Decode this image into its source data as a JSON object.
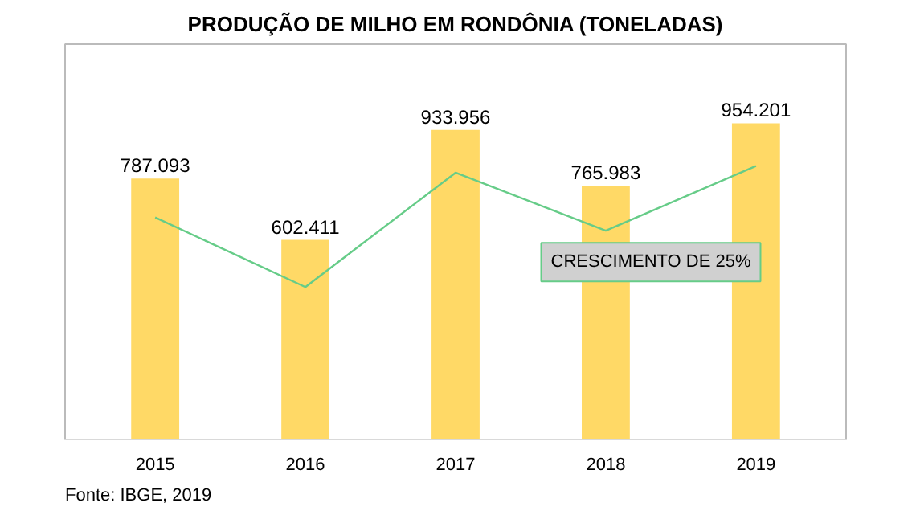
{
  "chart_data": {
    "type": "bar",
    "title": "PRODUÇÃO DE MILHO EM RONDÔNIA (TONELADAS)",
    "categories": [
      "2015",
      "2016",
      "2017",
      "2018",
      "2019"
    ],
    "series": [
      {
        "color": "#ffd966",
        "values": [
          787093,
          602411,
          933956,
          765983,
          954201
        ],
        "value_labels": [
          "787.093",
          "602.411",
          "933.956",
          "765.983",
          "954.201"
        ]
      },
      {
        "type": "line",
        "color": "#66cc88",
        "values": [
          670000,
          460000,
          805000,
          630000,
          825000
        ],
        "value_labels": [
          null,
          null,
          null,
          null,
          null
        ]
      }
    ],
    "annotations": [
      "CRESCIMENTO DE 25%",
      "Fonte: IBGE, 2019"
    ],
    "data_labels": true,
    "grid": false
  }
}
